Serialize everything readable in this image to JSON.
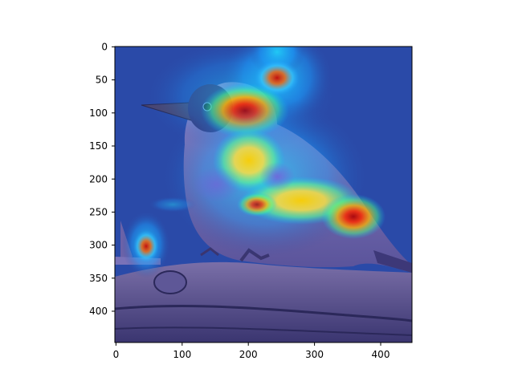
{
  "figure": {
    "type": "image",
    "description_free": true,
    "x_ticks": [
      "0",
      "100",
      "200",
      "300",
      "400"
    ],
    "y_ticks": [
      "0",
      "50",
      "100",
      "150",
      "200",
      "250",
      "300",
      "350",
      "400"
    ],
    "x_range": [
      0,
      448
    ],
    "y_range": [
      0,
      448
    ],
    "colormap": "jet",
    "overlay": "heatmap",
    "background_color": "#2a4aa8"
  }
}
